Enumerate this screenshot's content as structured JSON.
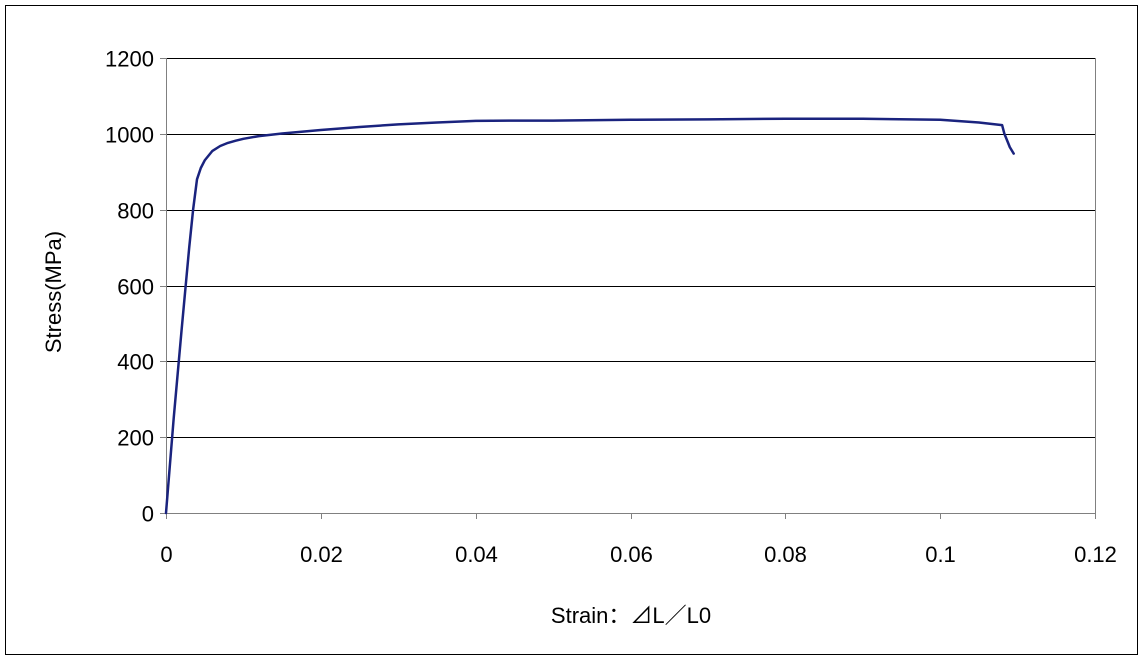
{
  "chart_data": {
    "type": "line",
    "title": "",
    "xlabel": "Strain：⊿L／L0",
    "ylabel": "Stress(MPa)",
    "xlim": [
      0,
      0.12
    ],
    "ylim": [
      0,
      1200
    ],
    "xticks": [
      0,
      0.02,
      0.04,
      0.06,
      0.08,
      0.1,
      0.12
    ],
    "xtick_labels": [
      "0",
      "0.02",
      "0.04",
      "0.06",
      "0.08",
      "0.1",
      "0.12"
    ],
    "yticks": [
      0,
      200,
      400,
      600,
      800,
      1000,
      1200
    ],
    "ytick_labels": [
      "0",
      "200",
      "400",
      "600",
      "800",
      "1000",
      "1200"
    ],
    "grid": "horizontal",
    "legend": "none",
    "colors": {
      "line": "#1a237e",
      "grid": "#000000",
      "axis": "#808080"
    },
    "series": [
      {
        "x": [
          0,
          0.001,
          0.002,
          0.003,
          0.0035,
          0.004,
          0.0045,
          0.005,
          0.006,
          0.007,
          0.008,
          0.009,
          0.01,
          0.012,
          0.015,
          0.02,
          0.025,
          0.03,
          0.035,
          0.04,
          0.045,
          0.05,
          0.06,
          0.07,
          0.08,
          0.09,
          0.1,
          0.105,
          0.108,
          0.1083,
          0.1087,
          0.109,
          0.1095
        ],
        "y": [
          0,
          250,
          480,
          700,
          800,
          880,
          910,
          930,
          955,
          968,
          976,
          982,
          987,
          994,
          1001,
          1010,
          1018,
          1025,
          1030,
          1034,
          1035,
          1035,
          1037,
          1038,
          1040,
          1040,
          1037,
          1030,
          1023,
          1000,
          980,
          965,
          948
        ]
      }
    ]
  }
}
